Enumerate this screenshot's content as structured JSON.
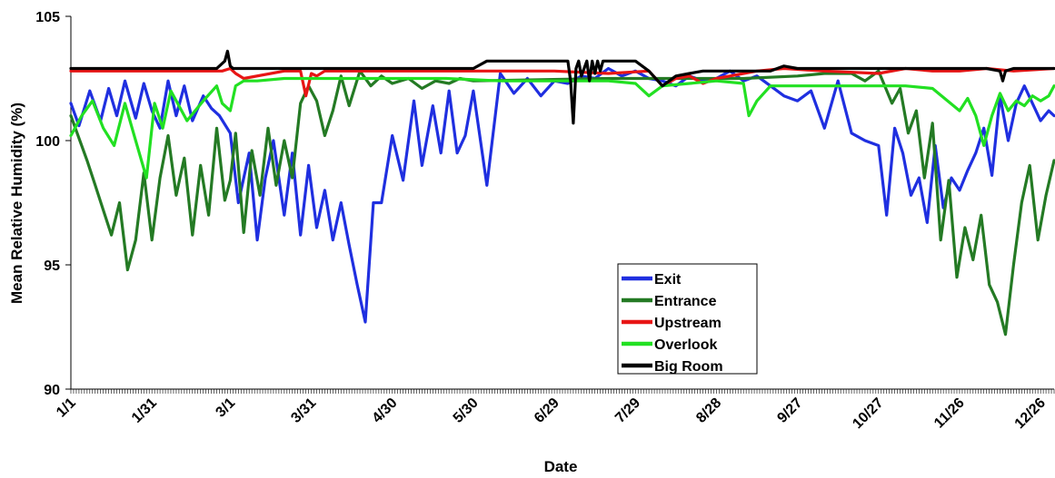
{
  "chart_data": {
    "type": "line",
    "title": "",
    "xlabel": "Date",
    "ylabel": "Mean Relative Humidity (%)",
    "ylim": [
      90,
      105
    ],
    "xlim": [
      1,
      365
    ],
    "y_ticks": [
      90,
      95,
      100,
      105
    ],
    "x_tick_labels": [
      {
        "day": 1,
        "label": "1/1"
      },
      {
        "day": 31,
        "label": "1/31"
      },
      {
        "day": 60,
        "label": "3/1"
      },
      {
        "day": 90,
        "label": "3/31"
      },
      {
        "day": 120,
        "label": "4/30"
      },
      {
        "day": 150,
        "label": "5/30"
      },
      {
        "day": 180,
        "label": "6/29"
      },
      {
        "day": 210,
        "label": "7/29"
      },
      {
        "day": 240,
        "label": "8/28"
      },
      {
        "day": 270,
        "label": "9/27"
      },
      {
        "day": 300,
        "label": "10/27"
      },
      {
        "day": 330,
        "label": "11/26"
      },
      {
        "day": 360,
        "label": "12/26"
      }
    ],
    "grid": false,
    "legend_position": "bottom-center",
    "series": [
      {
        "name": "Exit",
        "color": "#1f2fe0",
        "x": [
          1,
          4,
          8,
          12,
          15,
          18,
          21,
          25,
          28,
          31,
          34,
          37,
          40,
          43,
          46,
          50,
          53,
          56,
          60,
          63,
          67,
          70,
          73,
          76,
          80,
          83,
          86,
          89,
          92,
          95,
          98,
          101,
          104,
          107,
          110,
          113,
          116,
          120,
          124,
          128,
          131,
          135,
          138,
          141,
          144,
          147,
          150,
          155,
          160,
          165,
          170,
          175,
          180,
          185,
          190,
          195,
          200,
          205,
          210,
          215,
          220,
          225,
          230,
          235,
          240,
          245,
          250,
          255,
          260,
          265,
          270,
          275,
          280,
          285,
          290,
          295,
          300,
          303,
          306,
          309,
          312,
          315,
          318,
          321,
          324,
          327,
          330,
          333,
          336,
          339,
          342,
          345,
          348,
          351,
          354,
          357,
          360,
          363,
          365
        ],
        "y": [
          101.5,
          100.6,
          102.0,
          100.8,
          102.1,
          101.0,
          102.4,
          100.9,
          102.3,
          101.2,
          100.5,
          102.4,
          101.0,
          102.2,
          100.8,
          101.8,
          101.3,
          101.0,
          100.3,
          97.5,
          99.5,
          96.0,
          98.5,
          100.0,
          97.0,
          99.5,
          96.2,
          99.0,
          96.5,
          98.0,
          96.0,
          97.5,
          95.8,
          94.2,
          92.7,
          97.5,
          97.5,
          100.2,
          98.4,
          101.6,
          99.0,
          101.4,
          99.5,
          102.0,
          99.5,
          100.2,
          102.0,
          98.2,
          102.7,
          101.9,
          102.5,
          101.8,
          102.4,
          102.3,
          102.6,
          102.5,
          102.9,
          102.6,
          102.8,
          102.5,
          102.4,
          102.2,
          102.6,
          102.4,
          102.5,
          102.8,
          102.4,
          102.6,
          102.2,
          101.8,
          101.6,
          102.0,
          100.5,
          102.4,
          100.3,
          100.0,
          99.8,
          97.0,
          100.5,
          99.5,
          97.8,
          98.5,
          96.7,
          99.8,
          97.3,
          98.5,
          98.0,
          98.8,
          99.5,
          100.5,
          98.6,
          101.8,
          100.0,
          101.5,
          102.2,
          101.5,
          100.8,
          101.2,
          101.0
        ]
      },
      {
        "name": "Entrance",
        "color": "#247a24",
        "x": [
          1,
          4,
          7,
          10,
          13,
          16,
          19,
          22,
          25,
          28,
          31,
          34,
          37,
          40,
          43,
          46,
          49,
          52,
          55,
          58,
          60,
          62,
          65,
          68,
          71,
          74,
          77,
          80,
          83,
          86,
          89,
          92,
          95,
          98,
          101,
          104,
          108,
          112,
          116,
          120,
          126,
          131,
          136,
          141,
          145,
          150,
          200,
          250,
          270,
          280,
          290,
          295,
          300,
          305,
          308,
          311,
          314,
          317,
          320,
          323,
          326,
          329,
          332,
          335,
          338,
          341,
          344,
          347,
          350,
          353,
          356,
          359,
          362,
          365
        ],
        "y": [
          101.0,
          100.1,
          99.2,
          98.2,
          97.2,
          96.2,
          97.5,
          94.8,
          96.0,
          98.7,
          96.0,
          98.5,
          100.2,
          97.8,
          99.3,
          96.2,
          99.0,
          97.0,
          100.5,
          97.6,
          98.4,
          100.3,
          96.3,
          99.6,
          97.8,
          100.5,
          98.2,
          100.0,
          98.5,
          101.5,
          102.2,
          101.6,
          100.2,
          101.2,
          102.6,
          101.4,
          102.8,
          102.2,
          102.6,
          102.3,
          102.5,
          102.1,
          102.4,
          102.3,
          102.5,
          102.4,
          102.5,
          102.5,
          102.6,
          102.7,
          102.7,
          102.4,
          102.8,
          101.5,
          102.1,
          100.3,
          101.2,
          98.5,
          100.7,
          96.0,
          98.4,
          94.5,
          96.5,
          95.2,
          97.0,
          94.2,
          93.5,
          92.2,
          95.0,
          97.5,
          99.0,
          96.0,
          97.8,
          99.2
        ]
      },
      {
        "name": "Upstream",
        "color": "#e81515",
        "x": [
          1,
          20,
          40,
          57,
          60,
          62,
          65,
          80,
          86,
          88,
          90,
          92,
          95,
          120,
          150,
          180,
          200,
          215,
          220,
          225,
          230,
          235,
          240,
          245,
          250,
          255,
          265,
          280,
          300,
          310,
          320,
          330,
          340,
          350,
          365
        ],
        "y": [
          102.8,
          102.8,
          102.8,
          102.8,
          102.9,
          102.7,
          102.5,
          102.8,
          102.8,
          101.8,
          102.7,
          102.6,
          102.8,
          102.8,
          102.8,
          102.8,
          102.7,
          102.8,
          102.2,
          102.5,
          102.6,
          102.3,
          102.5,
          102.6,
          102.7,
          102.8,
          102.9,
          102.8,
          102.7,
          102.9,
          102.8,
          102.8,
          102.9,
          102.8,
          102.9
        ]
      },
      {
        "name": "Overlook",
        "color": "#22e022",
        "x": [
          1,
          5,
          9,
          13,
          17,
          21,
          25,
          29,
          32,
          35,
          38,
          41,
          44,
          47,
          50,
          55,
          57,
          60,
          62,
          65,
          70,
          80,
          100,
          120,
          140,
          160,
          180,
          200,
          210,
          215,
          220,
          230,
          240,
          250,
          252,
          255,
          260,
          270,
          280,
          290,
          300,
          310,
          320,
          330,
          333,
          336,
          339,
          342,
          345,
          348,
          351,
          354,
          357,
          360,
          363,
          365
        ],
        "y": [
          100.2,
          101.0,
          101.6,
          100.5,
          99.8,
          101.5,
          100.0,
          98.5,
          101.5,
          100.5,
          102.0,
          101.4,
          100.8,
          101.2,
          101.6,
          102.2,
          101.5,
          101.2,
          102.2,
          102.4,
          102.4,
          102.5,
          102.5,
          102.5,
          102.5,
          102.4,
          102.4,
          102.4,
          102.3,
          101.8,
          102.2,
          102.3,
          102.4,
          102.3,
          101.0,
          101.6,
          102.2,
          102.2,
          102.2,
          102.2,
          102.2,
          102.2,
          102.1,
          101.2,
          101.7,
          101.0,
          99.8,
          101.0,
          101.9,
          101.2,
          101.6,
          101.4,
          101.8,
          101.6,
          101.8,
          102.2
        ]
      },
      {
        "name": "Big Room",
        "color": "#000000",
        "x": [
          1,
          30,
          55,
          58,
          59,
          60,
          61,
          62,
          65,
          120,
          150,
          155,
          180,
          185,
          186,
          187,
          188,
          189,
          190,
          192,
          193,
          194,
          195,
          196,
          197,
          198,
          200,
          210,
          215,
          220,
          225,
          230,
          235,
          260,
          265,
          270,
          275,
          280,
          330,
          340,
          345,
          346,
          347,
          350,
          365
        ],
        "y": [
          102.9,
          102.9,
          102.9,
          103.2,
          103.6,
          103.0,
          102.9,
          102.9,
          102.9,
          102.9,
          102.9,
          103.2,
          103.2,
          103.2,
          102.4,
          100.7,
          102.9,
          103.2,
          102.6,
          103.2,
          102.4,
          103.2,
          102.7,
          103.2,
          102.8,
          103.2,
          103.2,
          103.2,
          102.8,
          102.2,
          102.6,
          102.7,
          102.8,
          102.8,
          103.0,
          102.9,
          102.9,
          102.9,
          102.9,
          102.9,
          102.8,
          102.4,
          102.8,
          102.9,
          102.9
        ]
      }
    ]
  }
}
